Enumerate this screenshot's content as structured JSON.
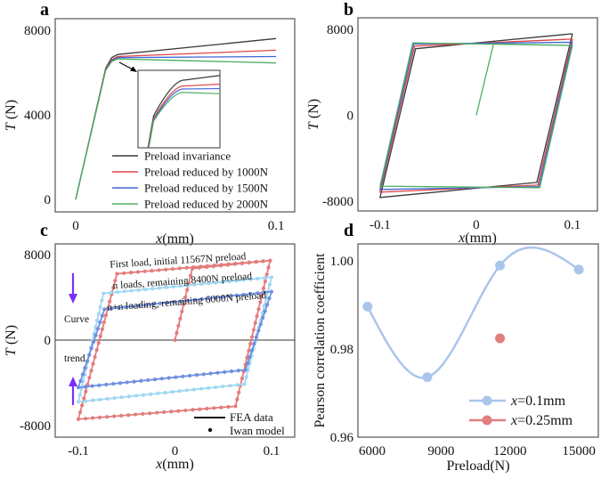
{
  "panel_labels": [
    "a",
    "b",
    "c",
    "d"
  ],
  "chart_data": [
    {
      "panel": "a",
      "type": "line",
      "xlabel": "x(mm)",
      "ylabel": "T (N)",
      "xticks": [
        {
          "v": 0,
          "label": "0"
        },
        {
          "v": 0.1,
          "label": "0.1"
        }
      ],
      "yticks": [
        {
          "v": 0,
          "label": "0"
        },
        {
          "v": 4000,
          "label": "4000"
        },
        {
          "v": 8000,
          "label": "8000"
        }
      ],
      "xlim": [
        -0.0102,
        0.1093
      ],
      "ylim": [
        -590,
        8540
      ],
      "grid": false,
      "legend": "bottom-right",
      "inset": "zoom of the knee region",
      "series": [
        {
          "name": "Preload invariance",
          "color": "#3a3a3a",
          "points": [
            [
              0,
              0
            ],
            [
              0.015,
              6200
            ],
            [
              0.018,
              6700
            ],
            [
              0.021,
              6850
            ],
            [
              0.1,
              7600
            ]
          ]
        },
        {
          "name": "Preload reduced by 1000N",
          "color": "#e04646",
          "points": [
            [
              0,
              0
            ],
            [
              0.015,
              6150
            ],
            [
              0.018,
              6600
            ],
            [
              0.021,
              6750
            ],
            [
              0.1,
              7050
            ]
          ]
        },
        {
          "name": "Preload reduced by 1500N",
          "color": "#3f66d6",
          "points": [
            [
              0,
              0
            ],
            [
              0.015,
              6120
            ],
            [
              0.018,
              6560
            ],
            [
              0.021,
              6700
            ],
            [
              0.1,
              6750
            ]
          ]
        },
        {
          "name": "Preload reduced by 2000N",
          "color": "#4fae62",
          "points": [
            [
              0,
              0
            ],
            [
              0.015,
              6100
            ],
            [
              0.018,
              6520
            ],
            [
              0.021,
              6640
            ],
            [
              0.1,
              6450
            ]
          ]
        }
      ]
    },
    {
      "panel": "b",
      "type": "line",
      "xlabel": "x(mm)",
      "ylabel": "T (N)",
      "xticks": [
        {
          "v": -0.1,
          "label": "-0.1"
        },
        {
          "v": 0,
          "label": "0"
        },
        {
          "v": 0.1,
          "label": "0.1"
        }
      ],
      "yticks": [
        {
          "v": -8000,
          "label": "-8000"
        },
        {
          "v": 0,
          "label": "0"
        },
        {
          "v": 8000,
          "label": "8000"
        }
      ],
      "xlim": [
        -0.123,
        0.126
      ],
      "ylim": [
        -8910,
        9080
      ],
      "grid": false,
      "series": [
        {
          "color": "#3a3a3a",
          "points": [
            [
              0.1,
              7600
            ],
            [
              0.063,
              -6250
            ],
            [
              -0.1,
              -7650
            ],
            [
              -0.063,
              6200
            ],
            [
              0.1,
              7600
            ]
          ]
        },
        {
          "color": "#e04646",
          "points": [
            [
              0.1,
              7100
            ],
            [
              0.064,
              -6500
            ],
            [
              -0.1,
              -7150
            ],
            [
              -0.064,
              6450
            ],
            [
              0.1,
              7100
            ]
          ]
        },
        {
          "color": "#3f66d6",
          "points": [
            [
              0.1,
              6800
            ],
            [
              0.065,
              -6650
            ],
            [
              -0.1,
              -6900
            ],
            [
              -0.065,
              6650
            ],
            [
              0.1,
              6800
            ]
          ]
        },
        {
          "color": "#4fae62",
          "points": [
            [
              0,
              0
            ],
            [
              0.018,
              6650
            ],
            [
              0.1,
              6500
            ],
            [
              0.066,
              -6750
            ],
            [
              -0.1,
              -6600
            ],
            [
              -0.066,
              6750
            ],
            [
              0.1,
              6500
            ]
          ]
        }
      ]
    },
    {
      "panel": "c",
      "type": "line",
      "xlabel": "x(mm)",
      "ylabel": "T (N)",
      "xticks": [
        {
          "v": -0.1,
          "label": "-0.1"
        },
        {
          "v": 0,
          "label": "0"
        },
        {
          "v": 0.1,
          "label": "0.1"
        }
      ],
      "yticks": [
        {
          "v": -8000,
          "label": "-8000"
        },
        {
          "v": 0,
          "label": "0"
        },
        {
          "v": 8000,
          "label": "8000"
        }
      ],
      "xlim": [
        -0.124,
        0.124
      ],
      "ylim": [
        -9080,
        9000
      ],
      "grid": false,
      "zero_line": true,
      "legend_items": [
        {
          "label": "FEA data",
          "marker": "line"
        },
        {
          "label": "Iwan model",
          "marker": "dot"
        }
      ],
      "annotations": [
        "First load, initial 11567N preload",
        "n loads, remaining 8400N preload",
        "n+n loading, remaining 6000N preload"
      ],
      "trend_labels": [
        "Curve",
        "trend"
      ],
      "arrow_color": "#7b2ff7",
      "series": [
        {
          "color": "#e37c7c",
          "points": [
            [
              0,
              0
            ],
            [
              0.018,
              6700
            ],
            [
              0.0986,
              7450
            ],
            [
              0.0627,
              -6190
            ],
            [
              -0.1,
              -7400
            ],
            [
              -0.06,
              6210
            ],
            [
              0.0986,
              7450
            ]
          ]
        },
        {
          "color": "#9fd8f2",
          "points": [
            [
              0.1,
              5880
            ],
            [
              0.072,
              -4120
            ],
            [
              -0.1,
              -5780
            ],
            [
              -0.074,
              4370
            ],
            [
              0.1,
              5880
            ]
          ]
        },
        {
          "color": "#6f8fe0",
          "points": [
            [
              0.1,
              4530
            ],
            [
              0.073,
              -2780
            ],
            [
              -0.1,
              -4430
            ],
            [
              -0.073,
              2890
            ],
            [
              0.1,
              4530
            ]
          ]
        }
      ]
    },
    {
      "panel": "d",
      "type": "line",
      "xlabel": "Preload(N)",
      "ylabel": "Pearson correlation coefficient",
      "xticks": [
        {
          "v": 6000,
          "label": "6000"
        },
        {
          "v": 9000,
          "label": "9000"
        },
        {
          "v": 12000,
          "label": "12000"
        },
        {
          "v": 15000,
          "label": "15000"
        }
      ],
      "yticks": [
        {
          "v": 0.96,
          "label": "0.96"
        },
        {
          "v": 0.98,
          "label": "0.98"
        },
        {
          "v": 1.0,
          "label": "1.00"
        }
      ],
      "xlim": [
        5380,
        15850
      ],
      "ylim": [
        0.96,
        1.0038
      ],
      "grid": false,
      "legend": "bottom-right",
      "series": [
        {
          "name_var": "x",
          "name_rest": "=0.1mm",
          "color": "#a9c6ea",
          "smooth": true,
          "x": [
            5800,
            8400,
            11567,
            15000
          ],
          "y": [
            0.9896,
            0.9736,
            0.9989,
            0.998
          ]
        },
        {
          "name_var": "x",
          "name_rest": "=0.25mm",
          "color": "#e07f7f",
          "smooth": false,
          "x": [
            11567
          ],
          "y": [
            0.9824
          ]
        }
      ]
    }
  ]
}
